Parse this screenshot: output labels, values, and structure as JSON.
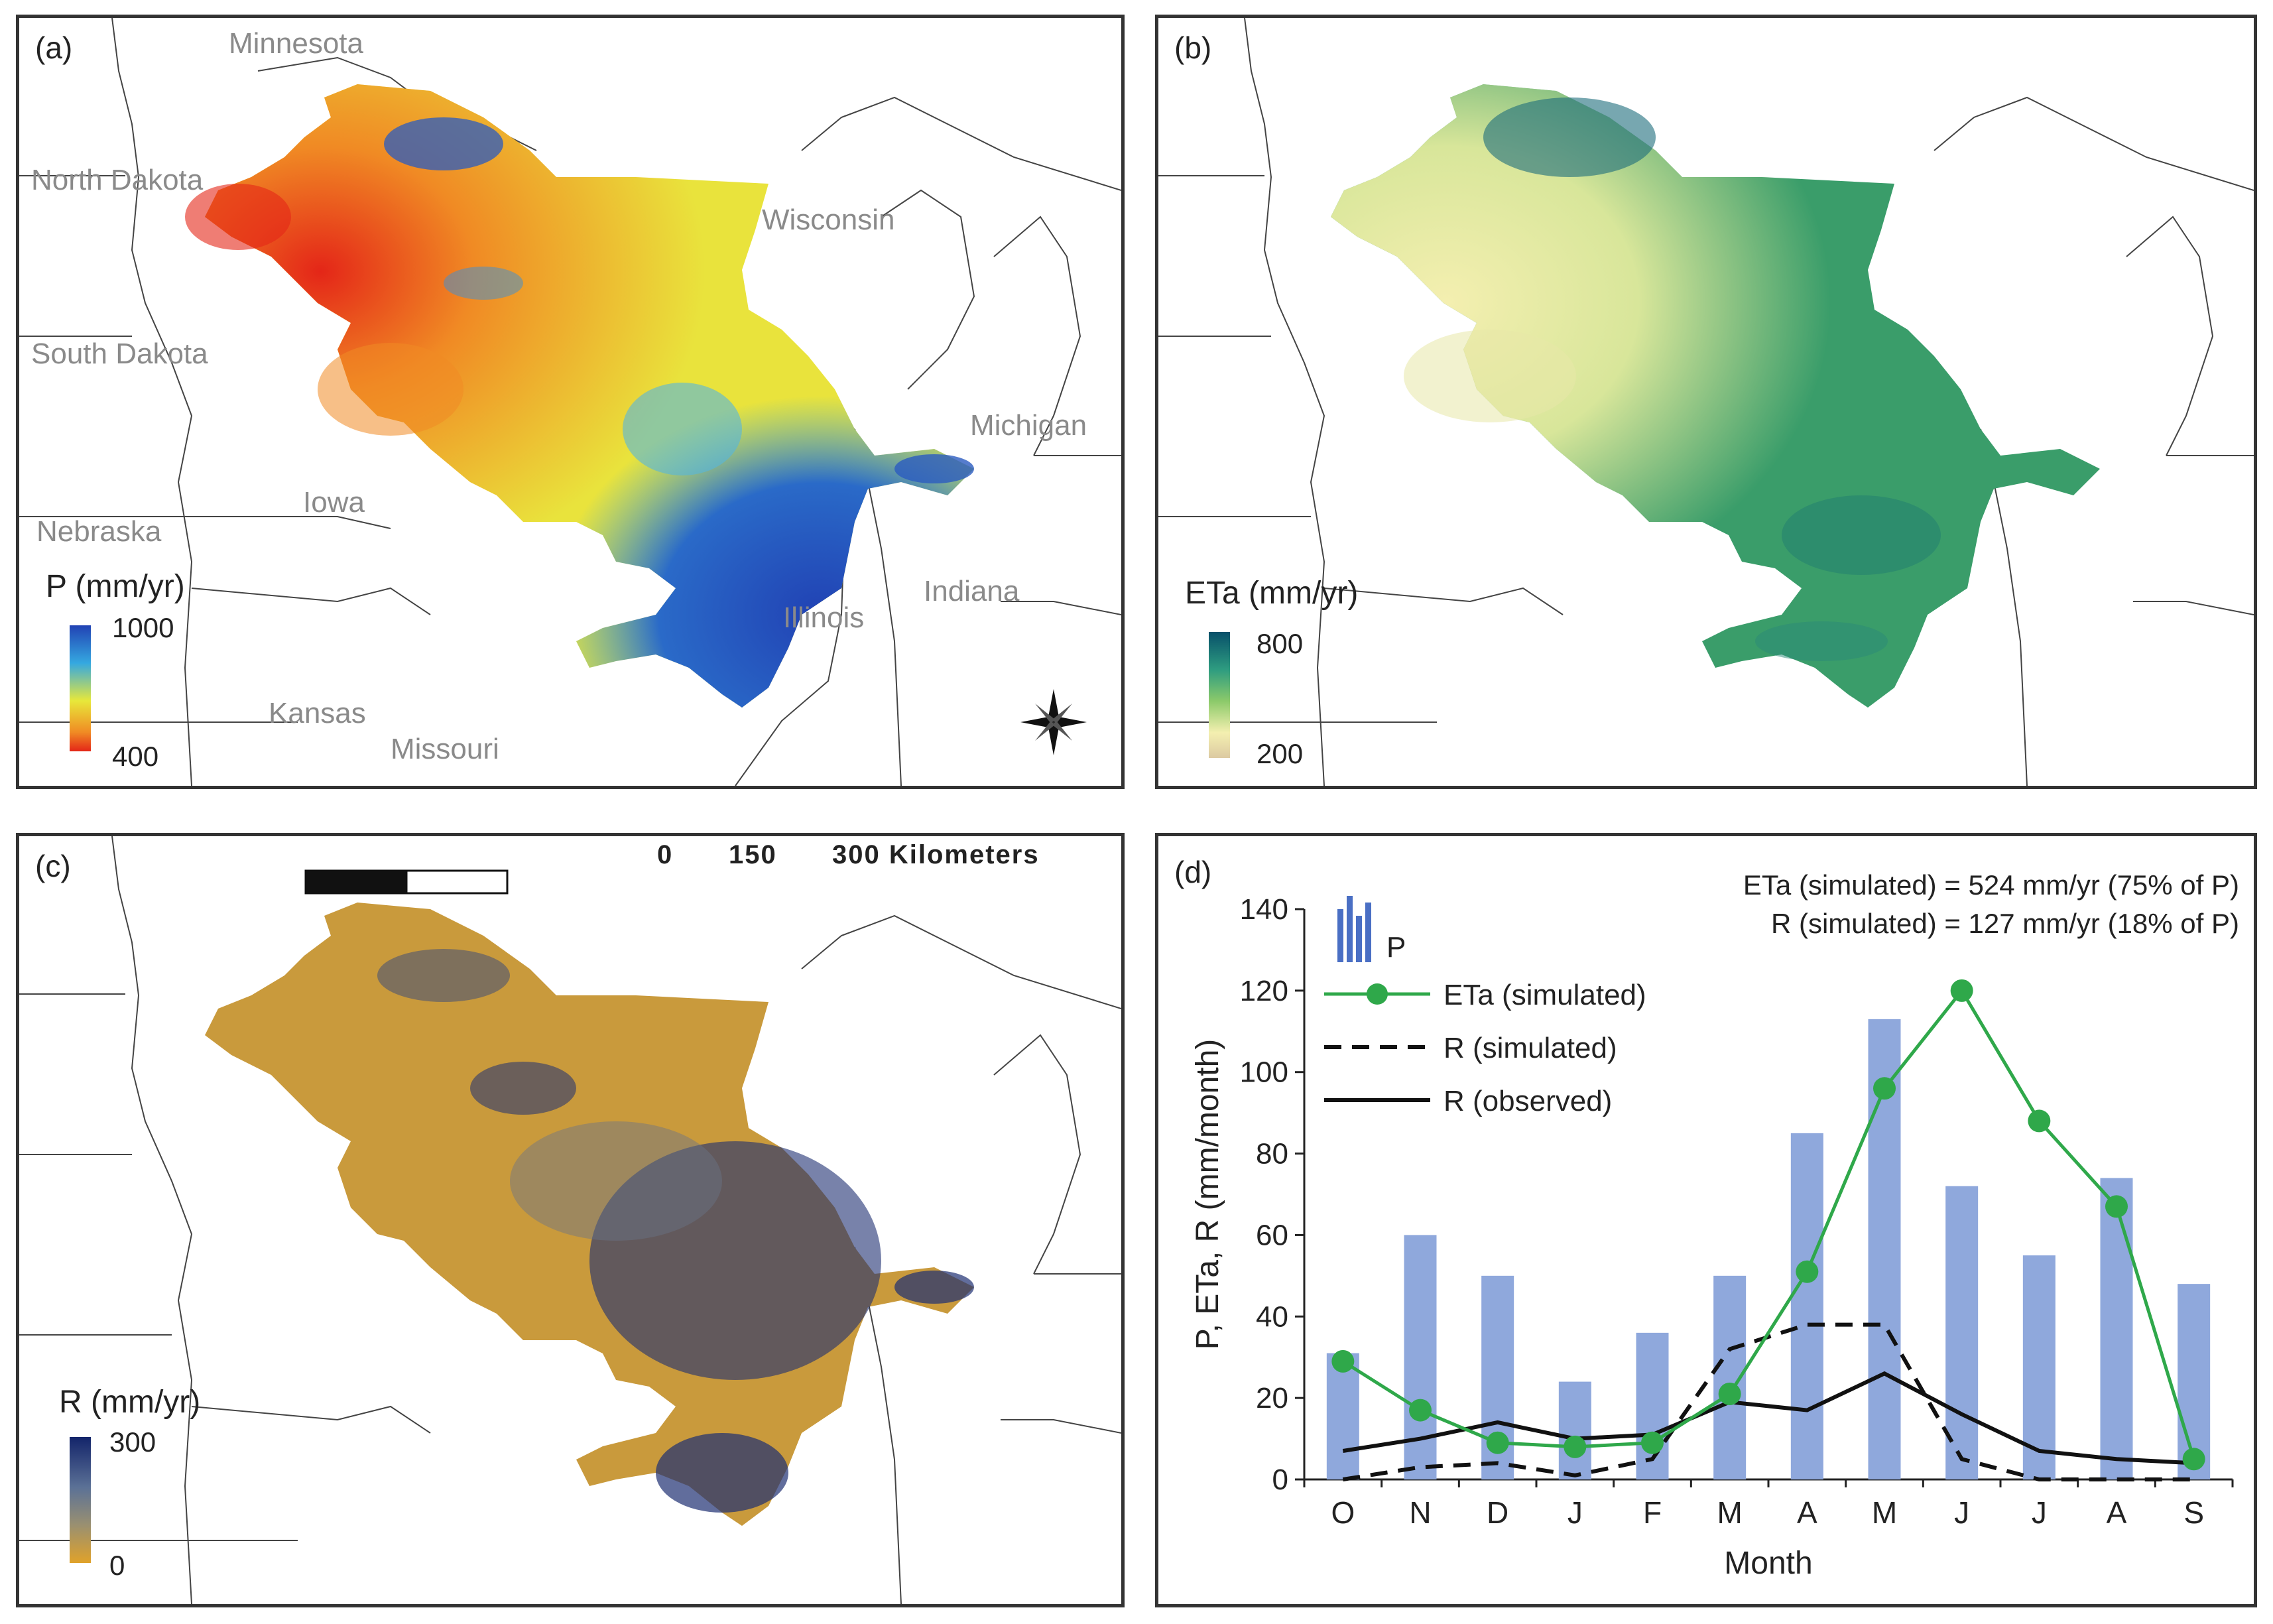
{
  "colors": {
    "p_scale": [
      "#2142b4",
      "#35a8e0",
      "#e8e83a",
      "#f08a24",
      "#e42618"
    ],
    "eta_scale": [
      "#08506a",
      "#2e9c80",
      "#8cca6a",
      "#f4efb0",
      "#dccaa2"
    ],
    "r_scale": [
      "#13246a",
      "#5b7196",
      "#9a9070",
      "#e0a22a"
    ],
    "bar_color": "#8fa8dc",
    "eta_line": "#2fa84a",
    "r_line": "#111111",
    "frame": "#333333"
  },
  "panels": {
    "a": {
      "label": "(a)",
      "legend_title": "P (mm/yr)",
      "legend_max": "1000",
      "legend_min": "400",
      "states": {
        "minnesota": "Minnesota",
        "north_dakota": "North Dakota",
        "south_dakota": "South Dakota",
        "nebraska": "Nebraska",
        "iowa": "Iowa",
        "kansas": "Kansas",
        "missouri": "Missouri",
        "illinois": "Illinois",
        "indiana": "Indiana",
        "michigan": "Michigan",
        "wisconsin": "Wisconsin"
      },
      "compass_icon": "compass-rose-icon"
    },
    "b": {
      "label": "(b)",
      "legend_title": "ETa (mm/yr)",
      "legend_max": "800",
      "legend_min": "200"
    },
    "c": {
      "label": "(c)",
      "legend_title": "R (mm/yr)",
      "legend_max": "300",
      "legend_min": "0",
      "scale_bar": {
        "t0": "0",
        "t1": "150",
        "t2": "300 Kilometers"
      }
    }
  },
  "chart_data": {
    "type": "bar",
    "label": "(d)",
    "categories": [
      "O",
      "N",
      "D",
      "J",
      "F",
      "M",
      "A",
      "M",
      "J",
      "J",
      "A",
      "S"
    ],
    "series": [
      {
        "name": "P",
        "kind": "bar",
        "values": [
          31,
          60,
          50,
          24,
          36,
          50,
          85,
          113,
          72,
          55,
          74,
          48
        ]
      },
      {
        "name": "ETa (simulated)",
        "kind": "line-marker",
        "values": [
          29,
          17,
          9,
          8,
          9,
          21,
          51,
          96,
          120,
          88,
          67,
          5
        ]
      },
      {
        "name": "R (simulated)",
        "kind": "dashed-line",
        "values": [
          0,
          3,
          4,
          1,
          5,
          32,
          38,
          38,
          5,
          0,
          0,
          0
        ]
      },
      {
        "name": "R (observed)",
        "kind": "line",
        "values": [
          7,
          10,
          14,
          10,
          11,
          19,
          17,
          26,
          16,
          7,
          5,
          4
        ]
      }
    ],
    "xlabel": "Month",
    "ylabel": "P, ETa, R (mm/month)",
    "ylim": [
      0,
      140
    ],
    "yticks": [
      0,
      20,
      40,
      60,
      80,
      100,
      120,
      140
    ],
    "annotation_1": "ETa (simulated) = 524 mm/yr (75% of P)",
    "annotation_2": "R (simulated) = 127 mm/yr (18% of P)",
    "legend": {
      "p": "P",
      "eta": "ETa (simulated)",
      "rsim": "R (simulated)",
      "robs": "R (observed)"
    }
  }
}
